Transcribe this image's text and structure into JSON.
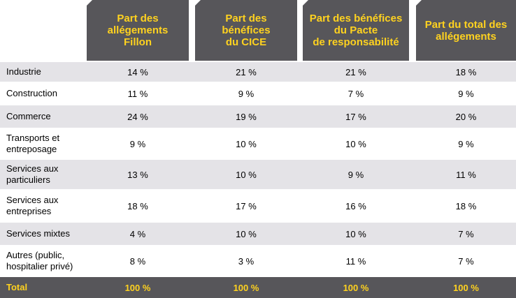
{
  "columns": [
    "Part des\nallégements\nFillon",
    "Part des\nbénéfices\ndu CICE",
    "Part des bénéfices\ndu Pacte\nde responsabilité",
    "Part du total des\nallégements"
  ],
  "rows": [
    {
      "label": "Industrie",
      "values": [
        "14 %",
        "21 %",
        "21 %",
        "18 %"
      ]
    },
    {
      "label": "Construction",
      "values": [
        "11 %",
        "9 %",
        "7 %",
        "9 %"
      ]
    },
    {
      "label": "Commerce",
      "values": [
        "24 %",
        "19 %",
        "17 %",
        "20 %"
      ]
    },
    {
      "label": "Transports et\nentreposage",
      "values": [
        "9 %",
        "10 %",
        "10 %",
        "9 %"
      ]
    },
    {
      "label": "Services aux\nparticuliers",
      "values": [
        "13 %",
        "10 %",
        "9 %",
        "11 %"
      ]
    },
    {
      "label": "Services aux\nentreprises",
      "values": [
        "18 %",
        "17 %",
        "16 %",
        "18 %"
      ]
    },
    {
      "label": "Services mixtes",
      "values": [
        "4 %",
        "10 %",
        "10 %",
        "7 %"
      ]
    },
    {
      "label": "Autres (public,\nhospitalier privé)",
      "values": [
        "8 %",
        "3 %",
        "11 %",
        "7 %"
      ]
    }
  ],
  "total": {
    "label": "Total",
    "values": [
      "100 %",
      "100 %",
      "100 %",
      "100 %"
    ]
  },
  "colors": {
    "header_bg": "#57565a",
    "header_text": "#ffd21f",
    "row_shade": "#e4e3e7"
  }
}
